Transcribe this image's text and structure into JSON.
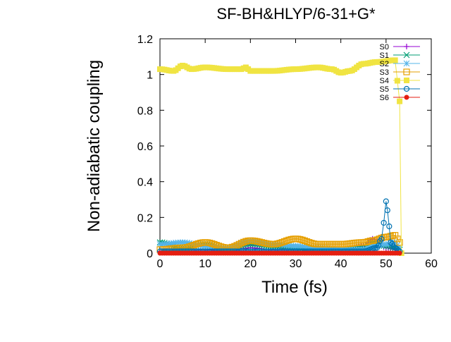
{
  "chart_data": {
    "type": "line",
    "title": "SF-BH&HLYP/6-31+G*",
    "xlabel": "Time (fs)",
    "ylabel": "Non-adiabatic coupling",
    "xlim": [
      0,
      60
    ],
    "ylim": [
      0,
      1.2
    ],
    "x_ticks": [
      "0",
      "10",
      "20",
      "30",
      "40",
      "50",
      "60"
    ],
    "y_ticks": [
      "0",
      "0.2",
      "0.4",
      "0.6",
      "0.8",
      "1",
      "1.2"
    ],
    "grid": false,
    "legend_position": "top-right",
    "series": [
      {
        "name": "S0",
        "color": "#9400d3",
        "marker": "plus",
        "x": [
          0,
          5,
          10,
          15,
          20,
          25,
          30,
          35,
          40,
          45,
          47,
          50,
          52,
          53
        ],
        "y": [
          0.01,
          0.02,
          0.02,
          0.01,
          0.03,
          0.02,
          0.02,
          0.01,
          0.01,
          0.04,
          0.08,
          0.03,
          0.02,
          0.01
        ]
      },
      {
        "name": "S1",
        "color": "#009e73",
        "marker": "x",
        "x": [
          0,
          5,
          10,
          15,
          20,
          25,
          30,
          35,
          40,
          45,
          47,
          50,
          52,
          53
        ],
        "y": [
          0.06,
          0.03,
          0.05,
          0.02,
          0.05,
          0.04,
          0.03,
          0.02,
          0.02,
          0.03,
          0.06,
          0.04,
          0.03,
          0.02
        ]
      },
      {
        "name": "S2",
        "color": "#56b4e9",
        "marker": "star",
        "x": [
          0,
          5,
          10,
          15,
          20,
          25,
          30,
          35,
          40,
          45,
          47,
          50,
          52,
          53
        ],
        "y": [
          0.05,
          0.06,
          0.04,
          0.03,
          0.07,
          0.05,
          0.04,
          0.03,
          0.02,
          0.02,
          0.04,
          0.05,
          0.06,
          0.03
        ]
      },
      {
        "name": "S3",
        "color": "#e69f00",
        "marker": "open-square",
        "x": [
          0,
          5,
          10,
          15,
          20,
          25,
          30,
          35,
          40,
          45,
          47,
          50,
          52,
          53
        ],
        "y": [
          0.02,
          0.03,
          0.06,
          0.03,
          0.07,
          0.05,
          0.08,
          0.05,
          0.05,
          0.06,
          0.07,
          0.09,
          0.1,
          0.06
        ]
      },
      {
        "name": "S4",
        "color": "#f0e442",
        "marker": "filled-square",
        "x": [
          0,
          3,
          5,
          7,
          10,
          15,
          18,
          19,
          20,
          25,
          30,
          35,
          38,
          40,
          42,
          45,
          48,
          52,
          53,
          53.4
        ],
        "y": [
          1.03,
          1.02,
          1.05,
          1.03,
          1.04,
          1.03,
          1.03,
          1.04,
          1.02,
          1.02,
          1.03,
          1.04,
          1.03,
          1.01,
          1.02,
          1.06,
          1.07,
          1.08,
          0.85,
          0.0
        ]
      },
      {
        "name": "S5",
        "color": "#0072b2",
        "marker": "open-circle",
        "x": [
          0,
          10,
          20,
          30,
          40,
          45,
          48,
          49,
          49.5,
          50,
          50.3,
          50.7,
          51,
          52,
          53
        ],
        "y": [
          0.01,
          0.01,
          0.01,
          0.01,
          0.01,
          0.01,
          0.03,
          0.08,
          0.17,
          0.29,
          0.24,
          0.15,
          0.06,
          0.03,
          0.01
        ]
      },
      {
        "name": "S6",
        "color": "#e51e10",
        "marker": "filled-circle",
        "x": [
          0,
          10,
          20,
          30,
          40,
          50,
          53
        ],
        "y": [
          0.0,
          0.0,
          0.0,
          0.0,
          0.0,
          0.0,
          0.0
        ]
      }
    ]
  }
}
